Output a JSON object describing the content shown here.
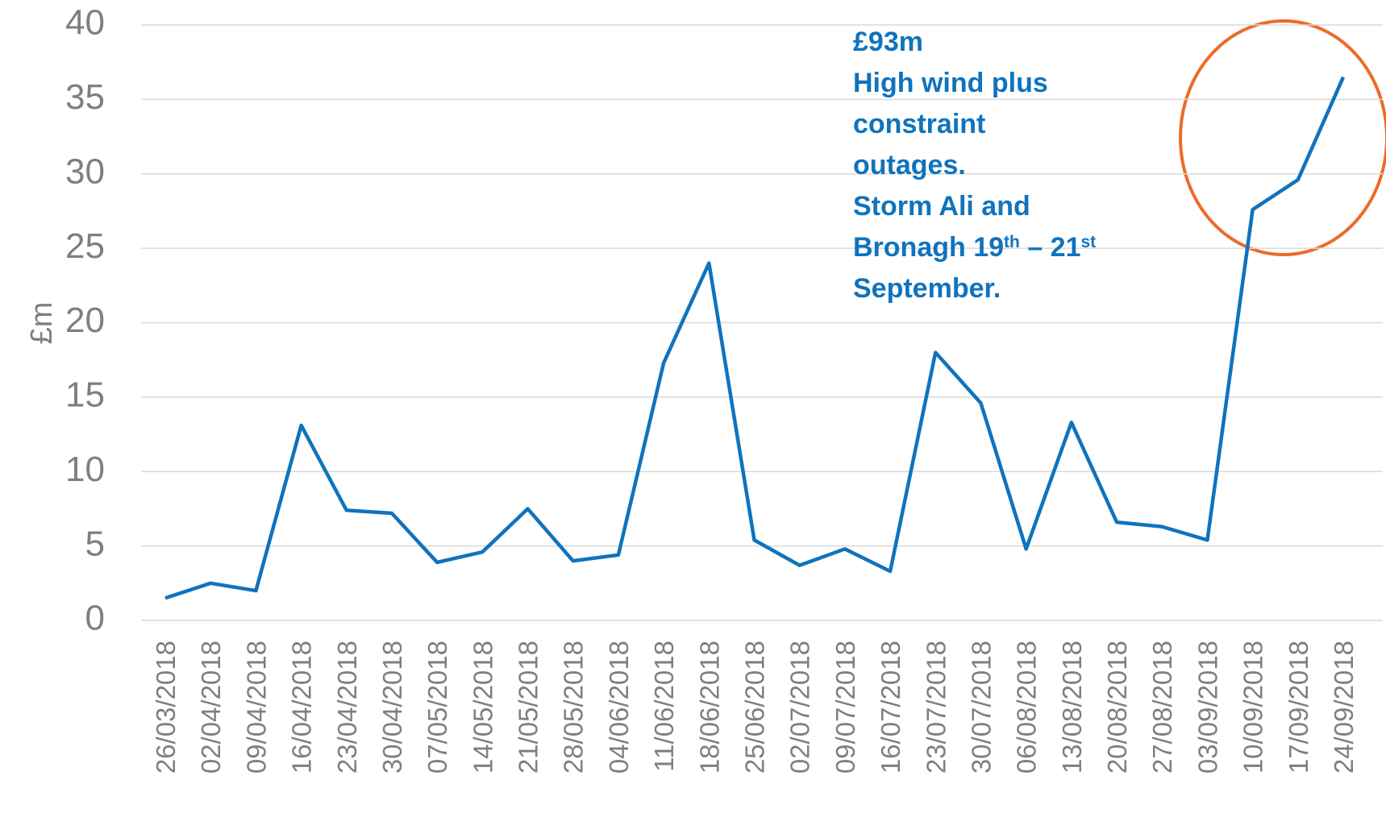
{
  "chart_data": {
    "type": "line",
    "y_label": "£m",
    "categories": [
      "26/03/2018",
      "02/04/2018",
      "09/04/2018",
      "16/04/2018",
      "23/04/2018",
      "30/04/2018",
      "07/05/2018",
      "14/05/2018",
      "21/05/2018",
      "28/05/2018",
      "04/06/2018",
      "11/06/2018",
      "18/06/2018",
      "25/06/2018",
      "02/07/2018",
      "09/07/2018",
      "16/07/2018",
      "23/07/2018",
      "30/07/2018",
      "06/08/2018",
      "13/08/2018",
      "20/08/2018",
      "27/08/2018",
      "03/09/2018",
      "10/09/2018",
      "17/09/2018",
      "24/09/2018"
    ],
    "values": [
      1.5,
      2.5,
      2.0,
      13.1,
      7.4,
      7.2,
      3.9,
      4.6,
      7.5,
      4.0,
      4.4,
      17.3,
      24.0,
      5.4,
      3.7,
      4.8,
      3.3,
      18.0,
      14.6,
      4.8,
      13.3,
      6.6,
      6.3,
      5.4,
      27.6,
      29.6,
      36.5
    ],
    "color": "#0f73bd",
    "ylim": [
      0,
      40
    ],
    "yticks": [
      0,
      5,
      10,
      15,
      20,
      25,
      30,
      35,
      40
    ],
    "grid": true,
    "annotation": {
      "color": "#0f73bd",
      "lines": [
        [
          "£93m"
        ],
        [
          "High wind plus"
        ],
        [
          "constraint"
        ],
        [
          "outages."
        ],
        [
          "Storm Ali and"
        ],
        [
          "Bronagh 19",
          "th",
          " – 21",
          "st"
        ],
        [
          "September."
        ]
      ]
    }
  }
}
